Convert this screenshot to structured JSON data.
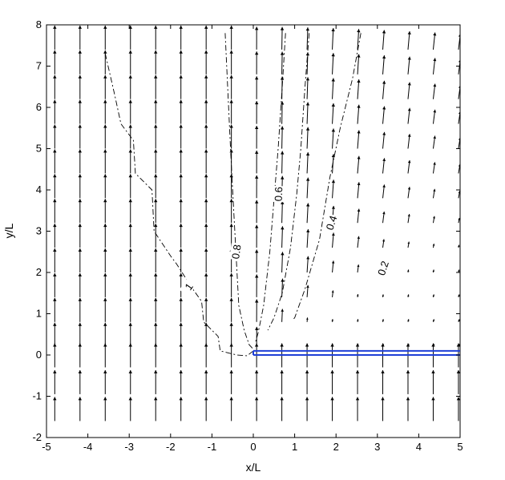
{
  "chart_data": {
    "type": "quiver-contour",
    "xlabel": "x/L",
    "ylabel": "y/L",
    "xlim": [
      -5,
      5
    ],
    "ylim": [
      -2,
      8
    ],
    "xticks": [
      -5,
      -4,
      -3,
      -2,
      -1,
      0,
      1,
      2,
      3,
      4,
      5
    ],
    "yticks": [
      -2,
      -1,
      0,
      1,
      2,
      3,
      4,
      5,
      6,
      7,
      8
    ],
    "grid": false,
    "arrow_color": "#000000",
    "plate_color": "#1f3fd6",
    "plate": {
      "x_start": 0,
      "x_end": 5,
      "y_lower": 0,
      "y_upper": 0.1
    },
    "quiver": {
      "x": [
        -4.8,
        -4.19,
        -3.58,
        -2.97,
        -2.36,
        -1.75,
        -1.14,
        -0.53,
        0.08,
        0.69,
        1.3,
        1.91,
        2.52,
        3.13,
        3.74,
        4.35,
        4.96
      ],
      "y": [
        -1.6,
        -0.95,
        -0.3,
        0.2,
        0.8,
        1.4,
        2.0,
        2.6,
        3.2,
        3.8,
        4.4,
        5.0,
        5.6,
        6.2,
        6.8,
        7.4
      ],
      "magnitude_rule": "below plate or x<0: full; above plate: decays with angle from vertical"
    },
    "contours": [
      {
        "level": "1",
        "points": [
          [
            -3.58,
            7.3
          ],
          [
            -3.35,
            6.3
          ],
          [
            -3.2,
            5.6
          ],
          [
            -2.9,
            5.2
          ],
          [
            -2.85,
            4.4
          ],
          [
            -2.45,
            4.0
          ],
          [
            -2.4,
            3.0
          ],
          [
            -2.0,
            2.4
          ],
          [
            -1.85,
            2.2
          ],
          [
            -1.5,
            1.65
          ],
          [
            -1.25,
            1.3
          ],
          [
            -1.2,
            0.8
          ],
          [
            -0.85,
            0.45
          ],
          [
            -0.8,
            0.1
          ],
          [
            -0.4,
            0.0
          ],
          [
            -0.15,
            -0.02
          ],
          [
            0.0,
            0.1
          ]
        ],
        "label_at": [
          -1.55,
          1.65
        ],
        "label_rot": -55
      },
      {
        "level": "0.8",
        "points": [
          [
            -0.68,
            7.8
          ],
          [
            -0.62,
            6.5
          ],
          [
            -0.55,
            5.0
          ],
          [
            -0.5,
            4.0
          ],
          [
            -0.42,
            2.5
          ],
          [
            -0.35,
            1.2
          ],
          [
            -0.22,
            0.6
          ],
          [
            -0.1,
            0.25
          ],
          [
            0.02,
            0.12
          ]
        ],
        "label_at": [
          -0.4,
          2.5
        ],
        "label_rot": -82
      },
      {
        "level": "0.6",
        "points": [
          [
            0.78,
            7.8
          ],
          [
            0.7,
            6.5
          ],
          [
            0.6,
            5.0
          ],
          [
            0.52,
            4.0
          ],
          [
            0.4,
            2.5
          ],
          [
            0.25,
            1.2
          ],
          [
            0.12,
            0.55
          ],
          [
            0.05,
            0.3
          ]
        ],
        "label_at": [
          0.62,
          3.9
        ],
        "label_rot": -88
      },
      {
        "level": "0.4",
        "points": [
          [
            1.35,
            7.8
          ],
          [
            1.25,
            6.5
          ],
          [
            1.15,
            5.0
          ],
          [
            1.05,
            3.9
          ],
          [
            0.9,
            2.6
          ],
          [
            0.7,
            1.5
          ],
          [
            0.5,
            0.9
          ],
          [
            0.35,
            0.6
          ]
        ],
        "label_at": [
          1.9,
          3.2
        ],
        "label_rot": -72
      },
      {
        "level": "0.2",
        "points": [
          [
            2.6,
            7.8
          ],
          [
            2.4,
            6.7
          ],
          [
            2.1,
            5.5
          ],
          [
            1.85,
            4.3
          ],
          [
            1.6,
            2.8
          ],
          [
            1.25,
            1.6
          ],
          [
            1.0,
            0.9
          ],
          [
            0.95,
            0.85
          ]
        ],
        "label_at": [
          3.15,
          2.1
        ],
        "label_rot": -72
      }
    ]
  }
}
